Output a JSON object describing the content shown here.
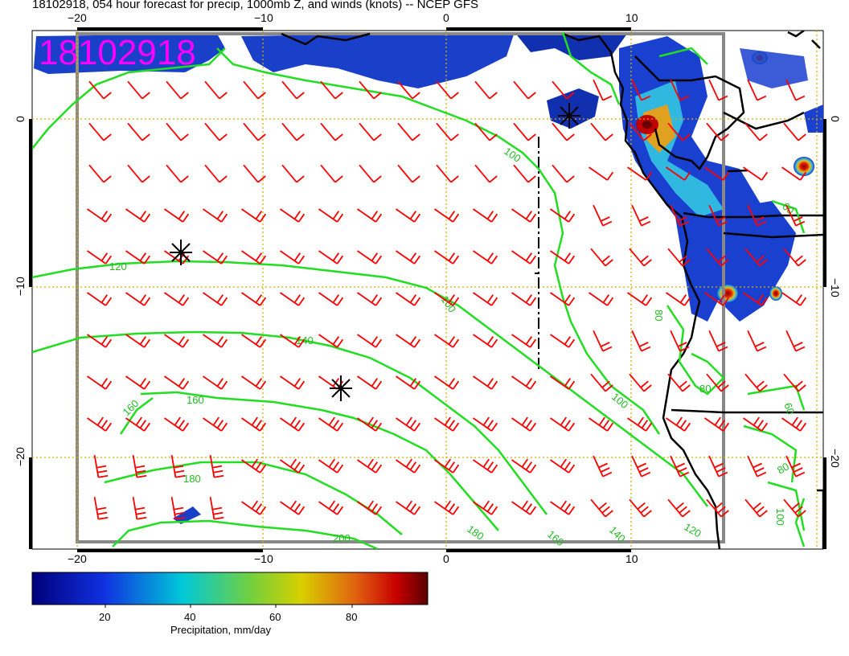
{
  "title": "18102918, 054 hour forecast for precip, 1000mb Z, and winds (knots) -- NCEP GFS",
  "date_stamp": "18102918",
  "axes": {
    "top_lon_labels": [
      "−20",
      "−10",
      "0",
      "10"
    ],
    "bottom_lon_labels": [
      "−20",
      "−10",
      "0",
      "10"
    ],
    "left_lat_labels": [
      "0",
      "−10",
      "−20"
    ],
    "right_lat_labels": [
      "0",
      "−10",
      "−20"
    ]
  },
  "contours": {
    "color": "#22dd22",
    "labels": [
      "120",
      "140",
      "160",
      "180",
      "160",
      "200",
      "100",
      "100",
      "100",
      "120",
      "140",
      "160",
      "180",
      "80",
      "80",
      "80",
      "60",
      "60",
      "100"
    ]
  },
  "colorbar": {
    "title": "Precipitation, mm/day",
    "ticks": [
      "20",
      "40",
      "60",
      "80"
    ]
  },
  "colors": {
    "stamp": "#ff00ff",
    "wind_barbs": "#ff0000",
    "grid": "#d4b000",
    "coast": "#000000"
  }
}
